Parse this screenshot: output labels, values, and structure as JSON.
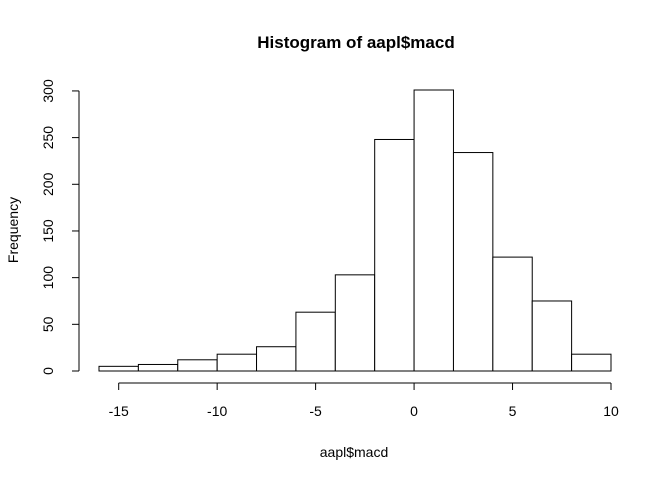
{
  "chart_data": {
    "type": "bar",
    "title": "Histogram of aapl$macd",
    "xlabel": "aapl$macd",
    "ylabel": "Frequency",
    "bins": [
      {
        "x0": -16,
        "x1": -14,
        "count": 5
      },
      {
        "x0": -14,
        "x1": -12,
        "count": 7
      },
      {
        "x0": -12,
        "x1": -10,
        "count": 12
      },
      {
        "x0": -10,
        "x1": -8,
        "count": 18
      },
      {
        "x0": -8,
        "x1": -6,
        "count": 26
      },
      {
        "x0": -6,
        "x1": -4,
        "count": 63
      },
      {
        "x0": -4,
        "x1": -2,
        "count": 103
      },
      {
        "x0": -2,
        "x1": 0,
        "count": 248
      },
      {
        "x0": 0,
        "x1": 2,
        "count": 301
      },
      {
        "x0": 2,
        "x1": 4,
        "count": 234
      },
      {
        "x0": 4,
        "x1": 6,
        "count": 122
      },
      {
        "x0": 6,
        "x1": 8,
        "count": 75
      },
      {
        "x0": 8,
        "x1": 10,
        "count": 18
      }
    ],
    "xlim": [
      -16,
      10
    ],
    "ylim": [
      0,
      301
    ],
    "xticks": [
      -15,
      -10,
      -5,
      0,
      5,
      10
    ],
    "yticks": [
      0,
      50,
      100,
      150,
      200,
      250,
      300
    ],
    "grid": false,
    "legend": "none"
  }
}
